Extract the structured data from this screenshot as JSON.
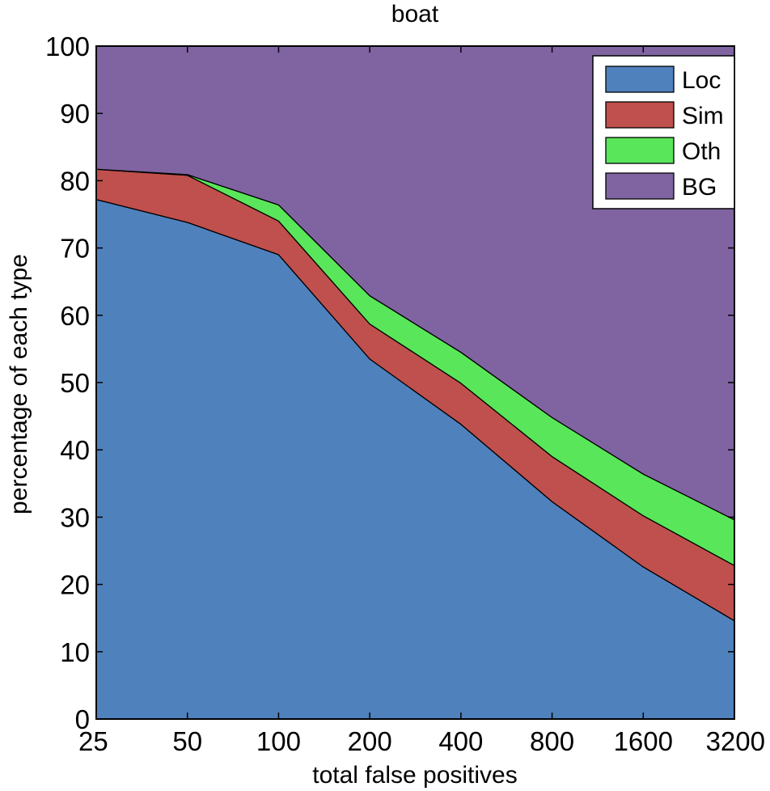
{
  "chart_data": {
    "type": "area",
    "stacked": true,
    "title": "boat",
    "xlabel": "total false positives",
    "ylabel": "percentage of each type",
    "x": [
      25,
      50,
      100,
      200,
      400,
      800,
      1600,
      3200
    ],
    "x_tick_labels": [
      "25",
      "50",
      "100",
      "200",
      "400",
      "800",
      "1600",
      "3200"
    ],
    "x_scale": "log",
    "ylim": [
      0,
      100
    ],
    "y_ticks": [
      0,
      10,
      20,
      30,
      40,
      50,
      60,
      70,
      80,
      90,
      100
    ],
    "y_tick_labels": [
      "0",
      "10",
      "20",
      "30",
      "40",
      "50",
      "60",
      "70",
      "80",
      "90",
      "100"
    ],
    "grid": false,
    "legend_position": "top-right",
    "series": [
      {
        "name": "Loc",
        "color": "#4f81bd",
        "values": [
          77.2,
          73.8,
          69.0,
          53.5,
          43.8,
          32.3,
          22.6,
          14.6
        ]
      },
      {
        "name": "Sim",
        "color": "#c0504d",
        "values": [
          4.5,
          7.0,
          5.0,
          5.2,
          6.1,
          6.7,
          7.6,
          8.2
        ]
      },
      {
        "name": "Oth",
        "color": "#5ae65a",
        "values": [
          0.0,
          0.1,
          2.4,
          4.2,
          4.6,
          5.8,
          6.2,
          6.8
        ]
      },
      {
        "name": "BG",
        "color": "#8064a2",
        "values": [
          18.3,
          19.1,
          23.6,
          37.1,
          45.5,
          55.2,
          63.6,
          70.4
        ]
      }
    ]
  }
}
